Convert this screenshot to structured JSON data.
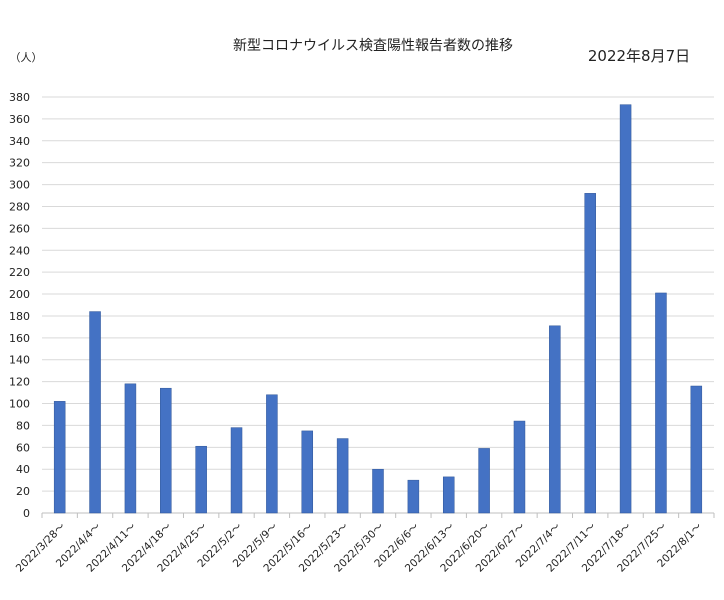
{
  "chart_data": {
    "type": "bar",
    "title": "新型コロナウイルス検査陽性報告者数の推移",
    "date": "2022年8月7日",
    "ylabel": "（人）",
    "xlabel": "",
    "ylim": [
      0,
      380
    ],
    "ystep": 20,
    "grid": true,
    "bar_color": "#4472c4",
    "categories": [
      "2022/3/28～",
      "2022/4/4～",
      "2022/4/11～",
      "2022/4/18～",
      "2022/4/25～",
      "2022/5/2～",
      "2022/5/9～",
      "2022/5/16～",
      "2022/5/23～",
      "2022/5/30～",
      "2022/6/6～",
      "2022/6/13～",
      "2022/6/20～",
      "2022/6/27～",
      "2022/7/4～",
      "2022/7/11～",
      "2022/7/18～",
      "2022/7/25～",
      "2022/8/1～"
    ],
    "values": [
      102,
      184,
      118,
      114,
      61,
      78,
      108,
      75,
      68,
      40,
      30,
      33,
      59,
      84,
      171,
      292,
      373,
      201,
      116
    ]
  }
}
